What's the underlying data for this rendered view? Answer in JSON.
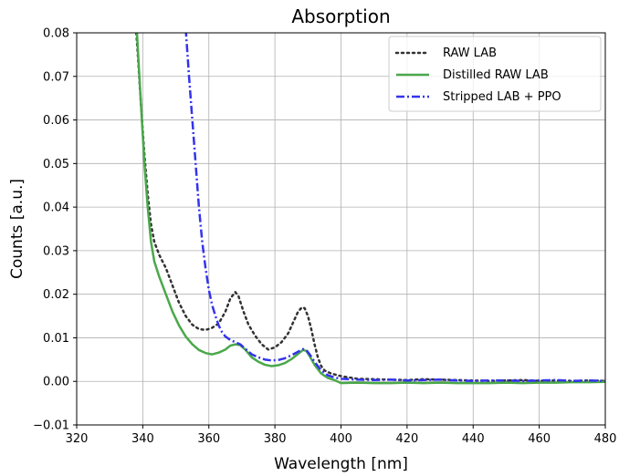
{
  "chart_data": {
    "type": "line",
    "title": "Absorption",
    "xlabel": "Wavelength [nm]",
    "ylabel": "Counts [a.u.]",
    "xlim": [
      320,
      480
    ],
    "ylim": [
      -0.01,
      0.08
    ],
    "xticks": [
      320,
      340,
      360,
      380,
      400,
      420,
      440,
      460,
      480
    ],
    "xtick_labels": [
      "320",
      "340",
      "360",
      "380",
      "400",
      "420",
      "440",
      "460",
      "480"
    ],
    "yticks": [
      -0.01,
      0.0,
      0.01,
      0.02,
      0.03,
      0.04,
      0.05,
      0.06,
      0.07,
      0.08
    ],
    "ytick_labels": [
      "−0.01",
      "0.00",
      "0.01",
      "0.02",
      "0.03",
      "0.04",
      "0.05",
      "0.06",
      "0.07",
      "0.08"
    ],
    "grid": true,
    "legend_position": "upper right",
    "series": [
      {
        "name": "RAW LAB",
        "color": "#333333",
        "style": "dotted",
        "points": [
          [
            337.6,
            0.085
          ],
          [
            338.5,
            0.075
          ],
          [
            339.5,
            0.063
          ],
          [
            340.5,
            0.052
          ],
          [
            341.5,
            0.043
          ],
          [
            342.5,
            0.036
          ],
          [
            343.5,
            0.032
          ],
          [
            345,
            0.029
          ],
          [
            347,
            0.026
          ],
          [
            349,
            0.022
          ],
          [
            351,
            0.018
          ],
          [
            353,
            0.015
          ],
          [
            355,
            0.013
          ],
          [
            357,
            0.012
          ],
          [
            359,
            0.0118
          ],
          [
            361,
            0.0123
          ],
          [
            363,
            0.0133
          ],
          [
            365,
            0.016
          ],
          [
            366.5,
            0.019
          ],
          [
            368,
            0.0205
          ],
          [
            369,
            0.0195
          ],
          [
            370.5,
            0.016
          ],
          [
            372,
            0.013
          ],
          [
            374,
            0.0105
          ],
          [
            376,
            0.0085
          ],
          [
            378,
            0.0073
          ],
          [
            380,
            0.0078
          ],
          [
            382,
            0.009
          ],
          [
            384,
            0.011
          ],
          [
            385.5,
            0.0135
          ],
          [
            387,
            0.016
          ],
          [
            388.2,
            0.017
          ],
          [
            389,
            0.0168
          ],
          [
            390,
            0.015
          ],
          [
            391,
            0.012
          ],
          [
            392,
            0.0085
          ],
          [
            393,
            0.0055
          ],
          [
            394,
            0.0035
          ],
          [
            395,
            0.0025
          ],
          [
            397,
            0.0018
          ],
          [
            400,
            0.0012
          ],
          [
            405,
            0.0006
          ],
          [
            410,
            0.0005
          ],
          [
            415,
            0.0004
          ],
          [
            420,
            0.0003
          ],
          [
            425,
            0.0005
          ],
          [
            430,
            0.0004
          ],
          [
            435,
            0.0003
          ],
          [
            440,
            0.0002
          ],
          [
            445,
            0.0001
          ],
          [
            450,
            0.0002
          ],
          [
            455,
            0.0003
          ],
          [
            460,
            0.0001
          ],
          [
            465,
            0.0002
          ],
          [
            470,
            0.0001
          ],
          [
            475,
            0.0002
          ],
          [
            480,
            0.0001
          ]
        ]
      },
      {
        "name": "Distilled RAW LAB",
        "color": "#4aa84a",
        "style": "solid",
        "points": [
          [
            337.9,
            0.085
          ],
          [
            338.6,
            0.075
          ],
          [
            339.5,
            0.063
          ],
          [
            340.5,
            0.05
          ],
          [
            341.5,
            0.04
          ],
          [
            342.5,
            0.032
          ],
          [
            343.5,
            0.0275
          ],
          [
            345,
            0.024
          ],
          [
            347,
            0.02
          ],
          [
            349,
            0.016
          ],
          [
            351,
            0.0128
          ],
          [
            353,
            0.0103
          ],
          [
            355,
            0.0085
          ],
          [
            357,
            0.0072
          ],
          [
            359,
            0.0065
          ],
          [
            361,
            0.0062
          ],
          [
            363,
            0.0066
          ],
          [
            365,
            0.0073
          ],
          [
            366.5,
            0.0082
          ],
          [
            368,
            0.0085
          ],
          [
            369.5,
            0.0083
          ],
          [
            371,
            0.0073
          ],
          [
            373,
            0.0055
          ],
          [
            375,
            0.0045
          ],
          [
            377,
            0.0038
          ],
          [
            379,
            0.0035
          ],
          [
            381,
            0.0037
          ],
          [
            383,
            0.0042
          ],
          [
            385,
            0.0051
          ],
          [
            387,
            0.0063
          ],
          [
            388.5,
            0.0072
          ],
          [
            389.5,
            0.007
          ],
          [
            390.5,
            0.0058
          ],
          [
            392,
            0.0038
          ],
          [
            394,
            0.0018
          ],
          [
            396,
            0.0008
          ],
          [
            398,
            0.0003
          ],
          [
            400,
            -0.0004
          ],
          [
            405,
            -0.0003
          ],
          [
            410,
            -0.0004
          ],
          [
            415,
            -0.0004
          ],
          [
            420,
            -0.0003
          ],
          [
            425,
            -0.0004
          ],
          [
            430,
            -0.0003
          ],
          [
            435,
            -0.0004
          ],
          [
            440,
            -0.0004
          ],
          [
            445,
            -0.0004
          ],
          [
            450,
            -0.0003
          ],
          [
            455,
            -0.0004
          ],
          [
            460,
            -0.0003
          ],
          [
            465,
            -0.0003
          ],
          [
            470,
            -0.0002
          ],
          [
            475,
            -0.0002
          ],
          [
            480,
            -0.0001
          ]
        ]
      },
      {
        "name": "Stripped LAB + PPO",
        "color": "#3333ee",
        "style": "dashdot",
        "points": [
          [
            353.0,
            0.081
          ],
          [
            354.0,
            0.07
          ],
          [
            355.0,
            0.06
          ],
          [
            356.0,
            0.05
          ],
          [
            357.0,
            0.04
          ],
          [
            358.0,
            0.032
          ],
          [
            359.0,
            0.026
          ],
          [
            360.0,
            0.021
          ],
          [
            361.0,
            0.0175
          ],
          [
            362.0,
            0.015
          ],
          [
            363.0,
            0.0128
          ],
          [
            364.0,
            0.0113
          ],
          [
            365.0,
            0.0103
          ],
          [
            366.5,
            0.0095
          ],
          [
            368.0,
            0.009
          ],
          [
            369.5,
            0.0085
          ],
          [
            371,
            0.0075
          ],
          [
            373,
            0.0062
          ],
          [
            375,
            0.0055
          ],
          [
            377,
            0.005
          ],
          [
            379,
            0.0048
          ],
          [
            381,
            0.0049
          ],
          [
            383,
            0.0053
          ],
          [
            385,
            0.006
          ],
          [
            387,
            0.0068
          ],
          [
            388.5,
            0.0074
          ],
          [
            389.5,
            0.0072
          ],
          [
            390.5,
            0.0062
          ],
          [
            392,
            0.0045
          ],
          [
            394,
            0.0025
          ],
          [
            396,
            0.0014
          ],
          [
            398,
            0.0009
          ],
          [
            400,
            0.0006
          ],
          [
            405,
            0.0004
          ],
          [
            410,
            0.0003
          ],
          [
            415,
            0.0004
          ],
          [
            420,
            0.0002
          ],
          [
            425,
            0.0003
          ],
          [
            430,
            0.0004
          ],
          [
            435,
            0.0002
          ],
          [
            440,
            0.0001
          ],
          [
            445,
            0.0002
          ],
          [
            450,
            0.0002
          ],
          [
            455,
            0.0001
          ],
          [
            460,
            0.0002
          ],
          [
            465,
            0.0003
          ],
          [
            470,
            0.0001
          ],
          [
            475,
            0.0002
          ],
          [
            480,
            0.0001
          ]
        ]
      }
    ]
  }
}
